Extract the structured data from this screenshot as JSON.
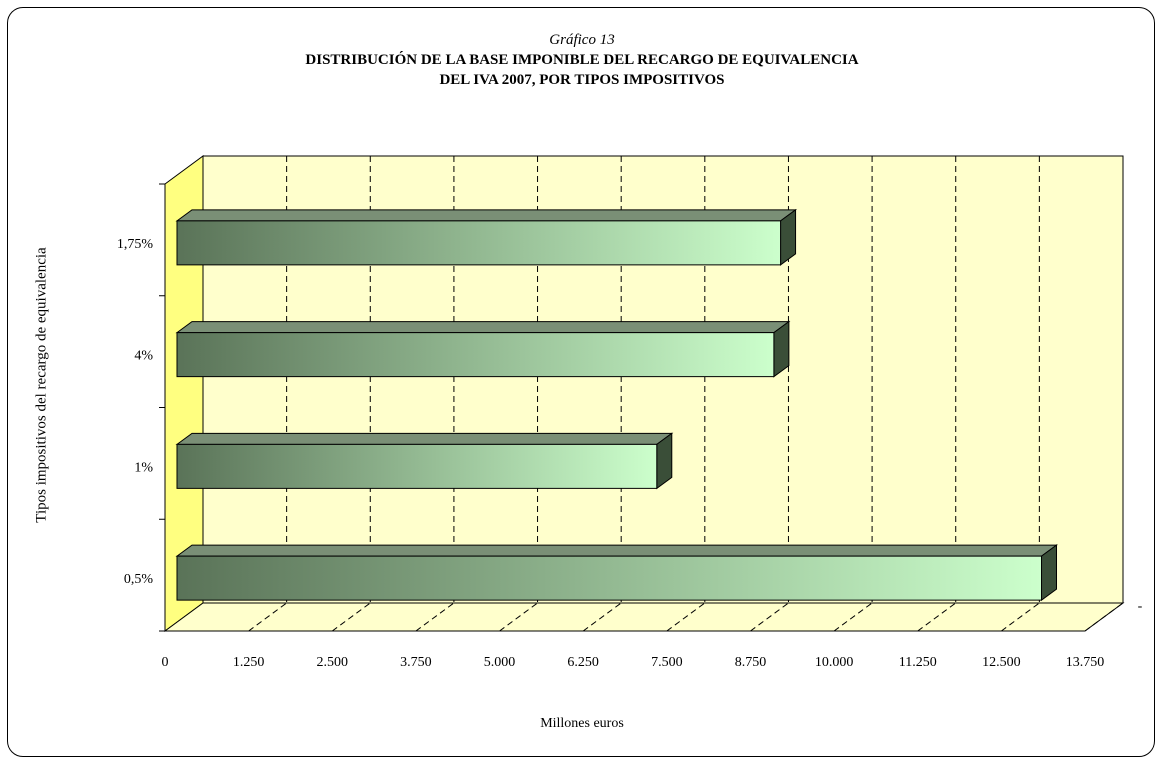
{
  "header": {
    "chart_number": "Gráfico  13",
    "title_line1": "DISTRIBUCIÓN DE LA BASE IMPONIBLE DEL RECARGO DE EQUIVALENCIA",
    "title_line2": "DEL IVA 2007, POR TIPOS IMPOSITIVOS"
  },
  "colors": {
    "back_wall": "#ffffcc",
    "side_wall": "#ffff80",
    "bar_dark": "#5a7358",
    "bar_light": "#ccffcc",
    "bar_side": "#3a4e38",
    "bar_top": "#7a8f76"
  },
  "chart_data": {
    "type": "bar",
    "orientation": "horizontal",
    "three_d": true,
    "categories": [
      "1,75%",
      "4%",
      "1%",
      "0,5%"
    ],
    "values": [
      9200,
      9100,
      7350,
      13100
    ],
    "x_ticks": [
      "0",
      "1.250",
      "2.500",
      "3.750",
      "5.000",
      "6.250",
      "7.500",
      "8.750",
      "10.000",
      "11.250",
      "12.500",
      "13.750"
    ],
    "xlim": [
      0,
      13750
    ],
    "xlabel": "Millones euros",
    "ylabel": "Tipos impositivos del recargo de equivalencia",
    "grid": "vertical dashed",
    "legend_text": "-"
  }
}
